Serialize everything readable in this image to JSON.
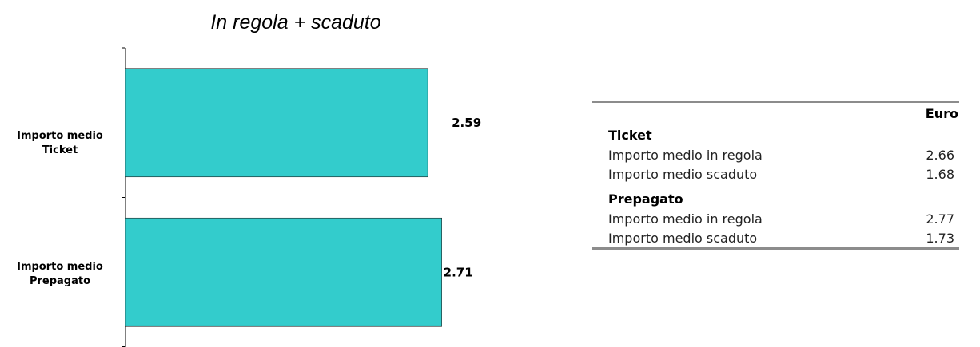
{
  "chart_data": {
    "type": "bar",
    "orientation": "horizontal",
    "title": "In regola + scaduto",
    "categories": [
      [
        "Importo medio",
        "Ticket"
      ],
      [
        "Importo medio",
        "Prepagato"
      ]
    ],
    "values": [
      2.59,
      2.71
    ],
    "value_labels": [
      "2.59",
      "2.71"
    ],
    "xlim": [
      0,
      3.6
    ],
    "bar_color": "#33cccc",
    "grid": false
  },
  "table": {
    "header": "Euro",
    "sections": [
      {
        "title": "Ticket",
        "rows": [
          {
            "label": "Importo medio in regola",
            "value": "2.66"
          },
          {
            "label": "Importo medio scaduto",
            "value": "1.68"
          }
        ]
      },
      {
        "title": "Prepagato",
        "rows": [
          {
            "label": "Importo medio in regola",
            "value": "2.77"
          },
          {
            "label": "Importo medio scaduto",
            "value": "1.73"
          }
        ]
      }
    ]
  }
}
